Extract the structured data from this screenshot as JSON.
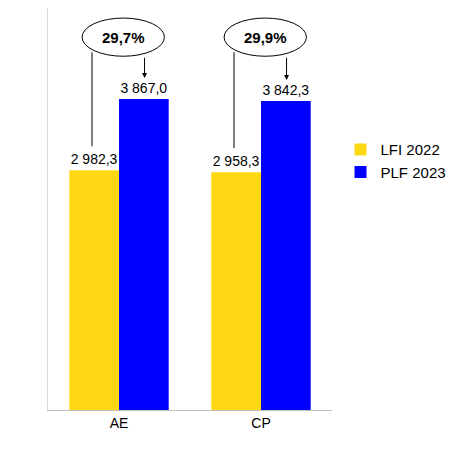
{
  "chart_data": {
    "type": "bar",
    "categories": [
      "AE",
      "CP"
    ],
    "series": [
      {
        "name": "LFI 2022",
        "color": "#FFD814",
        "values": [
          2982.3,
          2958.3
        ],
        "value_labels": [
          "2 982,3",
          "2 958,3"
        ]
      },
      {
        "name": "PLF 2023",
        "color": "#0000FF",
        "values": [
          3867.0,
          3842.3
        ],
        "value_labels": [
          "3 867,0",
          "3 842,3"
        ]
      }
    ],
    "annotations": [
      {
        "category": "AE",
        "text": "29,7%"
      },
      {
        "category": "CP",
        "text": "29,9%"
      }
    ],
    "ylim": [
      0,
      5000
    ],
    "data_labels": true,
    "tick_labels": "x",
    "legend": "right",
    "grid": false
  }
}
